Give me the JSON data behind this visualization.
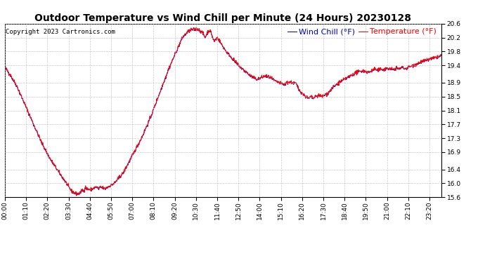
{
  "title": "Outdoor Temperature vs Wind Chill per Minute (24 Hours) 20230128",
  "copyright": "Copyright 2023 Cartronics.com",
  "legend_wind_chill": "Wind Chill (°F)",
  "legend_temperature": "Temperature (°F)",
  "ylim": [
    15.6,
    20.6
  ],
  "yticks": [
    15.6,
    16.0,
    16.4,
    16.9,
    17.3,
    17.7,
    18.1,
    18.5,
    18.9,
    19.4,
    19.8,
    20.2,
    20.6
  ],
  "background_color": "#ffffff",
  "grid_color": "#bbbbbb",
  "line_color_temp": "#ff0000",
  "line_color_wind": "#0000cc",
  "title_fontsize": 10,
  "tick_fontsize": 6.5,
  "legend_fontsize": 8,
  "copyright_fontsize": 6.5,
  "tick_interval_minutes": 70,
  "keypoints": [
    [
      0,
      19.35
    ],
    [
      20,
      19.1
    ],
    [
      40,
      18.8
    ],
    [
      60,
      18.4
    ],
    [
      80,
      18.0
    ],
    [
      100,
      17.6
    ],
    [
      120,
      17.2
    ],
    [
      150,
      16.7
    ],
    [
      180,
      16.3
    ],
    [
      200,
      16.05
    ],
    [
      210,
      15.9
    ],
    [
      220,
      15.78
    ],
    [
      230,
      15.72
    ],
    [
      240,
      15.7
    ],
    [
      248,
      15.72
    ],
    [
      255,
      15.82
    ],
    [
      260,
      15.78
    ],
    [
      265,
      15.9
    ],
    [
      270,
      15.85
    ],
    [
      280,
      15.82
    ],
    [
      290,
      15.85
    ],
    [
      300,
      15.9
    ],
    [
      310,
      15.85
    ],
    [
      315,
      15.9
    ],
    [
      320,
      15.88
    ],
    [
      330,
      15.85
    ],
    [
      340,
      15.9
    ],
    [
      360,
      16.0
    ],
    [
      390,
      16.3
    ],
    [
      420,
      16.8
    ],
    [
      450,
      17.3
    ],
    [
      480,
      17.9
    ],
    [
      510,
      18.6
    ],
    [
      540,
      19.3
    ],
    [
      560,
      19.7
    ],
    [
      575,
      20.0
    ],
    [
      585,
      20.2
    ],
    [
      595,
      20.3
    ],
    [
      605,
      20.38
    ],
    [
      615,
      20.42
    ],
    [
      625,
      20.44
    ],
    [
      635,
      20.45
    ],
    [
      645,
      20.4
    ],
    [
      655,
      20.3
    ],
    [
      660,
      20.2
    ],
    [
      665,
      20.3
    ],
    [
      670,
      20.38
    ],
    [
      675,
      20.4
    ],
    [
      680,
      20.35
    ],
    [
      685,
      20.2
    ],
    [
      690,
      20.1
    ],
    [
      695,
      20.15
    ],
    [
      700,
      20.2
    ],
    [
      705,
      20.15
    ],
    [
      715,
      20.0
    ],
    [
      730,
      19.8
    ],
    [
      750,
      19.6
    ],
    [
      770,
      19.4
    ],
    [
      790,
      19.25
    ],
    [
      810,
      19.1
    ],
    [
      830,
      19.0
    ],
    [
      845,
      19.05
    ],
    [
      860,
      19.1
    ],
    [
      875,
      19.05
    ],
    [
      890,
      18.95
    ],
    [
      905,
      18.9
    ],
    [
      920,
      18.85
    ],
    [
      930,
      18.9
    ],
    [
      940,
      18.92
    ],
    [
      950,
      18.9
    ],
    [
      960,
      18.88
    ],
    [
      970,
      18.7
    ],
    [
      980,
      18.6
    ],
    [
      990,
      18.52
    ],
    [
      1000,
      18.45
    ],
    [
      1010,
      18.5
    ],
    [
      1015,
      18.45
    ],
    [
      1025,
      18.5
    ],
    [
      1035,
      18.55
    ],
    [
      1045,
      18.5
    ],
    [
      1055,
      18.55
    ],
    [
      1065,
      18.6
    ],
    [
      1080,
      18.75
    ],
    [
      1100,
      18.9
    ],
    [
      1120,
      19.0
    ],
    [
      1140,
      19.1
    ],
    [
      1160,
      19.2
    ],
    [
      1180,
      19.25
    ],
    [
      1200,
      19.2
    ],
    [
      1210,
      19.25
    ],
    [
      1220,
      19.3
    ],
    [
      1230,
      19.25
    ],
    [
      1240,
      19.3
    ],
    [
      1250,
      19.28
    ],
    [
      1260,
      19.32
    ],
    [
      1270,
      19.3
    ],
    [
      1280,
      19.28
    ],
    [
      1290,
      19.32
    ],
    [
      1300,
      19.3
    ],
    [
      1310,
      19.35
    ],
    [
      1320,
      19.3
    ],
    [
      1330,
      19.35
    ],
    [
      1340,
      19.38
    ],
    [
      1350,
      19.42
    ],
    [
      1360,
      19.45
    ],
    [
      1370,
      19.5
    ],
    [
      1380,
      19.52
    ],
    [
      1390,
      19.55
    ],
    [
      1400,
      19.58
    ],
    [
      1410,
      19.6
    ],
    [
      1420,
      19.62
    ],
    [
      1430,
      19.65
    ],
    [
      1439,
      19.68
    ]
  ]
}
